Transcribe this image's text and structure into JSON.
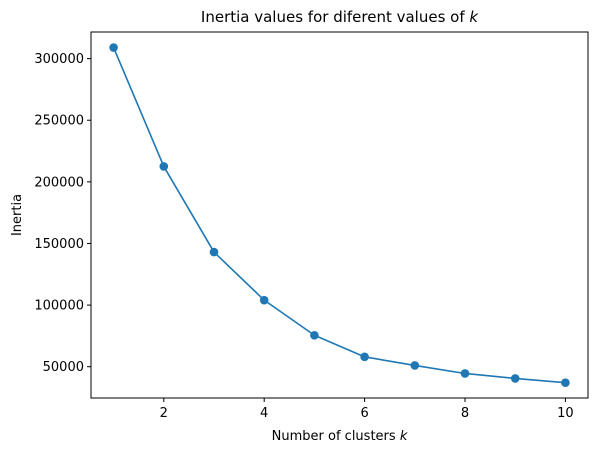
{
  "chart_data": {
    "type": "line",
    "title": "Inertia values for diferent values of",
    "title_var": "k",
    "xlabel": "Number of clusters",
    "xlabel_var": "k",
    "ylabel": "Inertia",
    "x": [
      1,
      2,
      3,
      4,
      5,
      6,
      7,
      8,
      9,
      10
    ],
    "series": [
      {
        "values": [
          309000,
          212500,
          143000,
          104000,
          75500,
          58000,
          51000,
          44500,
          40500,
          37000
        ],
        "color": "#1f77b4",
        "marker": "circle"
      }
    ],
    "xlim": [
      0.55,
      10.45
    ],
    "ylim": [
      24600,
      321600
    ],
    "xticks": [
      2,
      4,
      6,
      8,
      10
    ],
    "xtick_labels": [
      "2",
      "4",
      "6",
      "8",
      "10"
    ],
    "yticks": [
      50000,
      100000,
      150000,
      200000,
      250000,
      300000
    ],
    "ytick_labels": [
      "50000",
      "100000",
      "150000",
      "200000",
      "250000",
      "300000"
    ],
    "grid": false
  }
}
